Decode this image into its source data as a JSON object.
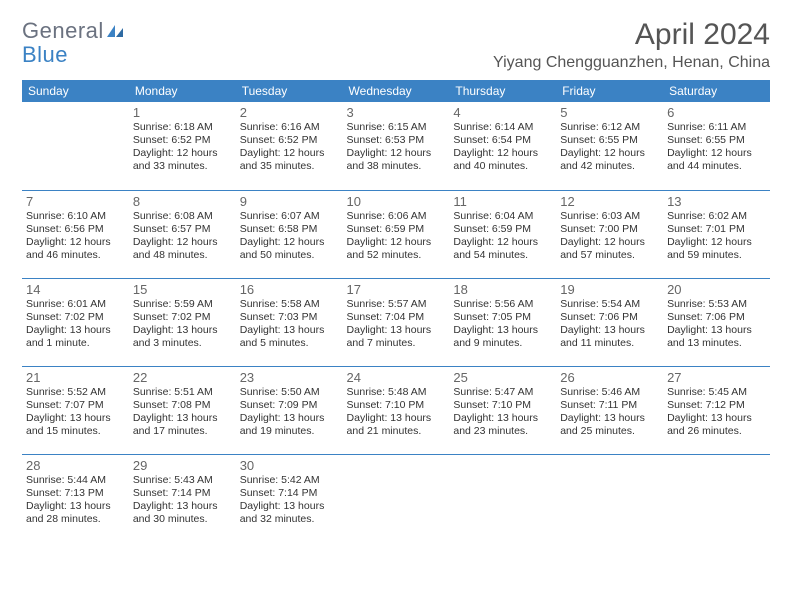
{
  "logo": {
    "text1": "General",
    "text2": "Blue"
  },
  "title": "April 2024",
  "location": "Yiyang Chengguanzhen, Henan, China",
  "colors": {
    "header_bg": "#3b82c4",
    "header_fg": "#ffffff",
    "rule": "#3b82c4",
    "title_color": "#555555"
  },
  "weekdays": [
    "Sunday",
    "Monday",
    "Tuesday",
    "Wednesday",
    "Thursday",
    "Friday",
    "Saturday"
  ],
  "weeks": [
    [
      null,
      {
        "n": "1",
        "sr": "Sunrise: 6:18 AM",
        "ss": "Sunset: 6:52 PM",
        "dl": "Daylight: 12 hours and 33 minutes."
      },
      {
        "n": "2",
        "sr": "Sunrise: 6:16 AM",
        "ss": "Sunset: 6:52 PM",
        "dl": "Daylight: 12 hours and 35 minutes."
      },
      {
        "n": "3",
        "sr": "Sunrise: 6:15 AM",
        "ss": "Sunset: 6:53 PM",
        "dl": "Daylight: 12 hours and 38 minutes."
      },
      {
        "n": "4",
        "sr": "Sunrise: 6:14 AM",
        "ss": "Sunset: 6:54 PM",
        "dl": "Daylight: 12 hours and 40 minutes."
      },
      {
        "n": "5",
        "sr": "Sunrise: 6:12 AM",
        "ss": "Sunset: 6:55 PM",
        "dl": "Daylight: 12 hours and 42 minutes."
      },
      {
        "n": "6",
        "sr": "Sunrise: 6:11 AM",
        "ss": "Sunset: 6:55 PM",
        "dl": "Daylight: 12 hours and 44 minutes."
      }
    ],
    [
      {
        "n": "7",
        "sr": "Sunrise: 6:10 AM",
        "ss": "Sunset: 6:56 PM",
        "dl": "Daylight: 12 hours and 46 minutes."
      },
      {
        "n": "8",
        "sr": "Sunrise: 6:08 AM",
        "ss": "Sunset: 6:57 PM",
        "dl": "Daylight: 12 hours and 48 minutes."
      },
      {
        "n": "9",
        "sr": "Sunrise: 6:07 AM",
        "ss": "Sunset: 6:58 PM",
        "dl": "Daylight: 12 hours and 50 minutes."
      },
      {
        "n": "10",
        "sr": "Sunrise: 6:06 AM",
        "ss": "Sunset: 6:59 PM",
        "dl": "Daylight: 12 hours and 52 minutes."
      },
      {
        "n": "11",
        "sr": "Sunrise: 6:04 AM",
        "ss": "Sunset: 6:59 PM",
        "dl": "Daylight: 12 hours and 54 minutes."
      },
      {
        "n": "12",
        "sr": "Sunrise: 6:03 AM",
        "ss": "Sunset: 7:00 PM",
        "dl": "Daylight: 12 hours and 57 minutes."
      },
      {
        "n": "13",
        "sr": "Sunrise: 6:02 AM",
        "ss": "Sunset: 7:01 PM",
        "dl": "Daylight: 12 hours and 59 minutes."
      }
    ],
    [
      {
        "n": "14",
        "sr": "Sunrise: 6:01 AM",
        "ss": "Sunset: 7:02 PM",
        "dl": "Daylight: 13 hours and 1 minute."
      },
      {
        "n": "15",
        "sr": "Sunrise: 5:59 AM",
        "ss": "Sunset: 7:02 PM",
        "dl": "Daylight: 13 hours and 3 minutes."
      },
      {
        "n": "16",
        "sr": "Sunrise: 5:58 AM",
        "ss": "Sunset: 7:03 PM",
        "dl": "Daylight: 13 hours and 5 minutes."
      },
      {
        "n": "17",
        "sr": "Sunrise: 5:57 AM",
        "ss": "Sunset: 7:04 PM",
        "dl": "Daylight: 13 hours and 7 minutes."
      },
      {
        "n": "18",
        "sr": "Sunrise: 5:56 AM",
        "ss": "Sunset: 7:05 PM",
        "dl": "Daylight: 13 hours and 9 minutes."
      },
      {
        "n": "19",
        "sr": "Sunrise: 5:54 AM",
        "ss": "Sunset: 7:06 PM",
        "dl": "Daylight: 13 hours and 11 minutes."
      },
      {
        "n": "20",
        "sr": "Sunrise: 5:53 AM",
        "ss": "Sunset: 7:06 PM",
        "dl": "Daylight: 13 hours and 13 minutes."
      }
    ],
    [
      {
        "n": "21",
        "sr": "Sunrise: 5:52 AM",
        "ss": "Sunset: 7:07 PM",
        "dl": "Daylight: 13 hours and 15 minutes."
      },
      {
        "n": "22",
        "sr": "Sunrise: 5:51 AM",
        "ss": "Sunset: 7:08 PM",
        "dl": "Daylight: 13 hours and 17 minutes."
      },
      {
        "n": "23",
        "sr": "Sunrise: 5:50 AM",
        "ss": "Sunset: 7:09 PM",
        "dl": "Daylight: 13 hours and 19 minutes."
      },
      {
        "n": "24",
        "sr": "Sunrise: 5:48 AM",
        "ss": "Sunset: 7:10 PM",
        "dl": "Daylight: 13 hours and 21 minutes."
      },
      {
        "n": "25",
        "sr": "Sunrise: 5:47 AM",
        "ss": "Sunset: 7:10 PM",
        "dl": "Daylight: 13 hours and 23 minutes."
      },
      {
        "n": "26",
        "sr": "Sunrise: 5:46 AM",
        "ss": "Sunset: 7:11 PM",
        "dl": "Daylight: 13 hours and 25 minutes."
      },
      {
        "n": "27",
        "sr": "Sunrise: 5:45 AM",
        "ss": "Sunset: 7:12 PM",
        "dl": "Daylight: 13 hours and 26 minutes."
      }
    ],
    [
      {
        "n": "28",
        "sr": "Sunrise: 5:44 AM",
        "ss": "Sunset: 7:13 PM",
        "dl": "Daylight: 13 hours and 28 minutes."
      },
      {
        "n": "29",
        "sr": "Sunrise: 5:43 AM",
        "ss": "Sunset: 7:14 PM",
        "dl": "Daylight: 13 hours and 30 minutes."
      },
      {
        "n": "30",
        "sr": "Sunrise: 5:42 AM",
        "ss": "Sunset: 7:14 PM",
        "dl": "Daylight: 13 hours and 32 minutes."
      },
      null,
      null,
      null,
      null
    ]
  ]
}
